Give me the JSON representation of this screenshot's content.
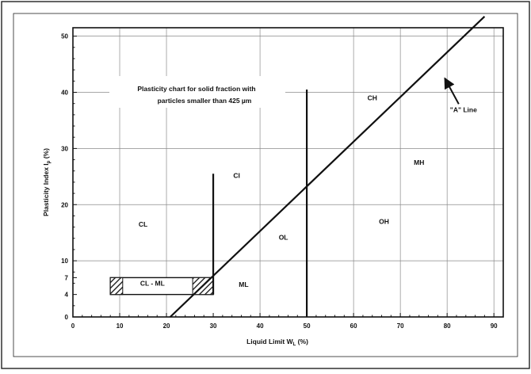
{
  "chart_data": {
    "type": "line",
    "title": [
      "Plasticity chart for solid fraction with",
      "particles smaller than 425 µm"
    ],
    "xlabel": "Liquid Limit W",
    "xlabel_sub": "L",
    "xlabel_unit": " (%)",
    "ylabel": "Plasticity Index I",
    "ylabel_sub": "p",
    "ylabel_unit": " (%)",
    "xlim": [
      0,
      92
    ],
    "ylim": [
      0,
      51.5
    ],
    "x_ticks": [
      0,
      10,
      20,
      30,
      40,
      50,
      60,
      70,
      80,
      90
    ],
    "x_tick_labels": [
      "0",
      "10",
      "20",
      "30",
      "40",
      "50",
      "60",
      "70",
      "80",
      "90"
    ],
    "y_ticks": [
      0,
      4,
      7,
      10,
      20,
      30,
      40,
      50
    ],
    "y_tick_labels": [
      "0",
      "4",
      "7",
      "10",
      "20",
      "30",
      "40",
      "50"
    ],
    "x_gridlines": [
      10,
      20,
      40,
      60,
      70,
      80,
      90
    ],
    "y_gridlines": [
      10,
      20,
      30,
      40,
      50
    ],
    "grid": true,
    "series": [
      {
        "name": "\"A\" Line",
        "points": [
          [
            20.8,
            0
          ],
          [
            88,
            53.5
          ]
        ]
      }
    ],
    "vertical_lines": [
      {
        "x": 30,
        "y": [
          4,
          25.5
        ]
      },
      {
        "x": 50,
        "y": [
          0,
          40.5
        ]
      }
    ],
    "zones": [
      {
        "label": "CL",
        "x": 15,
        "y": 16.5
      },
      {
        "label": "CI",
        "x": 35,
        "y": 25.2
      },
      {
        "label": "CH",
        "x": 64,
        "y": 39
      },
      {
        "label": "MH",
        "x": 74,
        "y": 27.5
      },
      {
        "label": "OH",
        "x": 66.5,
        "y": 17
      },
      {
        "label": "OL",
        "x": 45,
        "y": 14.2
      },
      {
        "label": "ML",
        "x": 36.5,
        "y": 5.8
      },
      {
        "label": "CL - ML",
        "x": 17,
        "y": 6
      }
    ],
    "cl_ml_band": {
      "x": [
        8,
        30
      ],
      "y": [
        4,
        7
      ]
    },
    "annotation": {
      "label": "\"A\" Line",
      "x": 83.5,
      "y": 36.5,
      "arrow_to": [
        79.5,
        42.5
      ]
    }
  }
}
